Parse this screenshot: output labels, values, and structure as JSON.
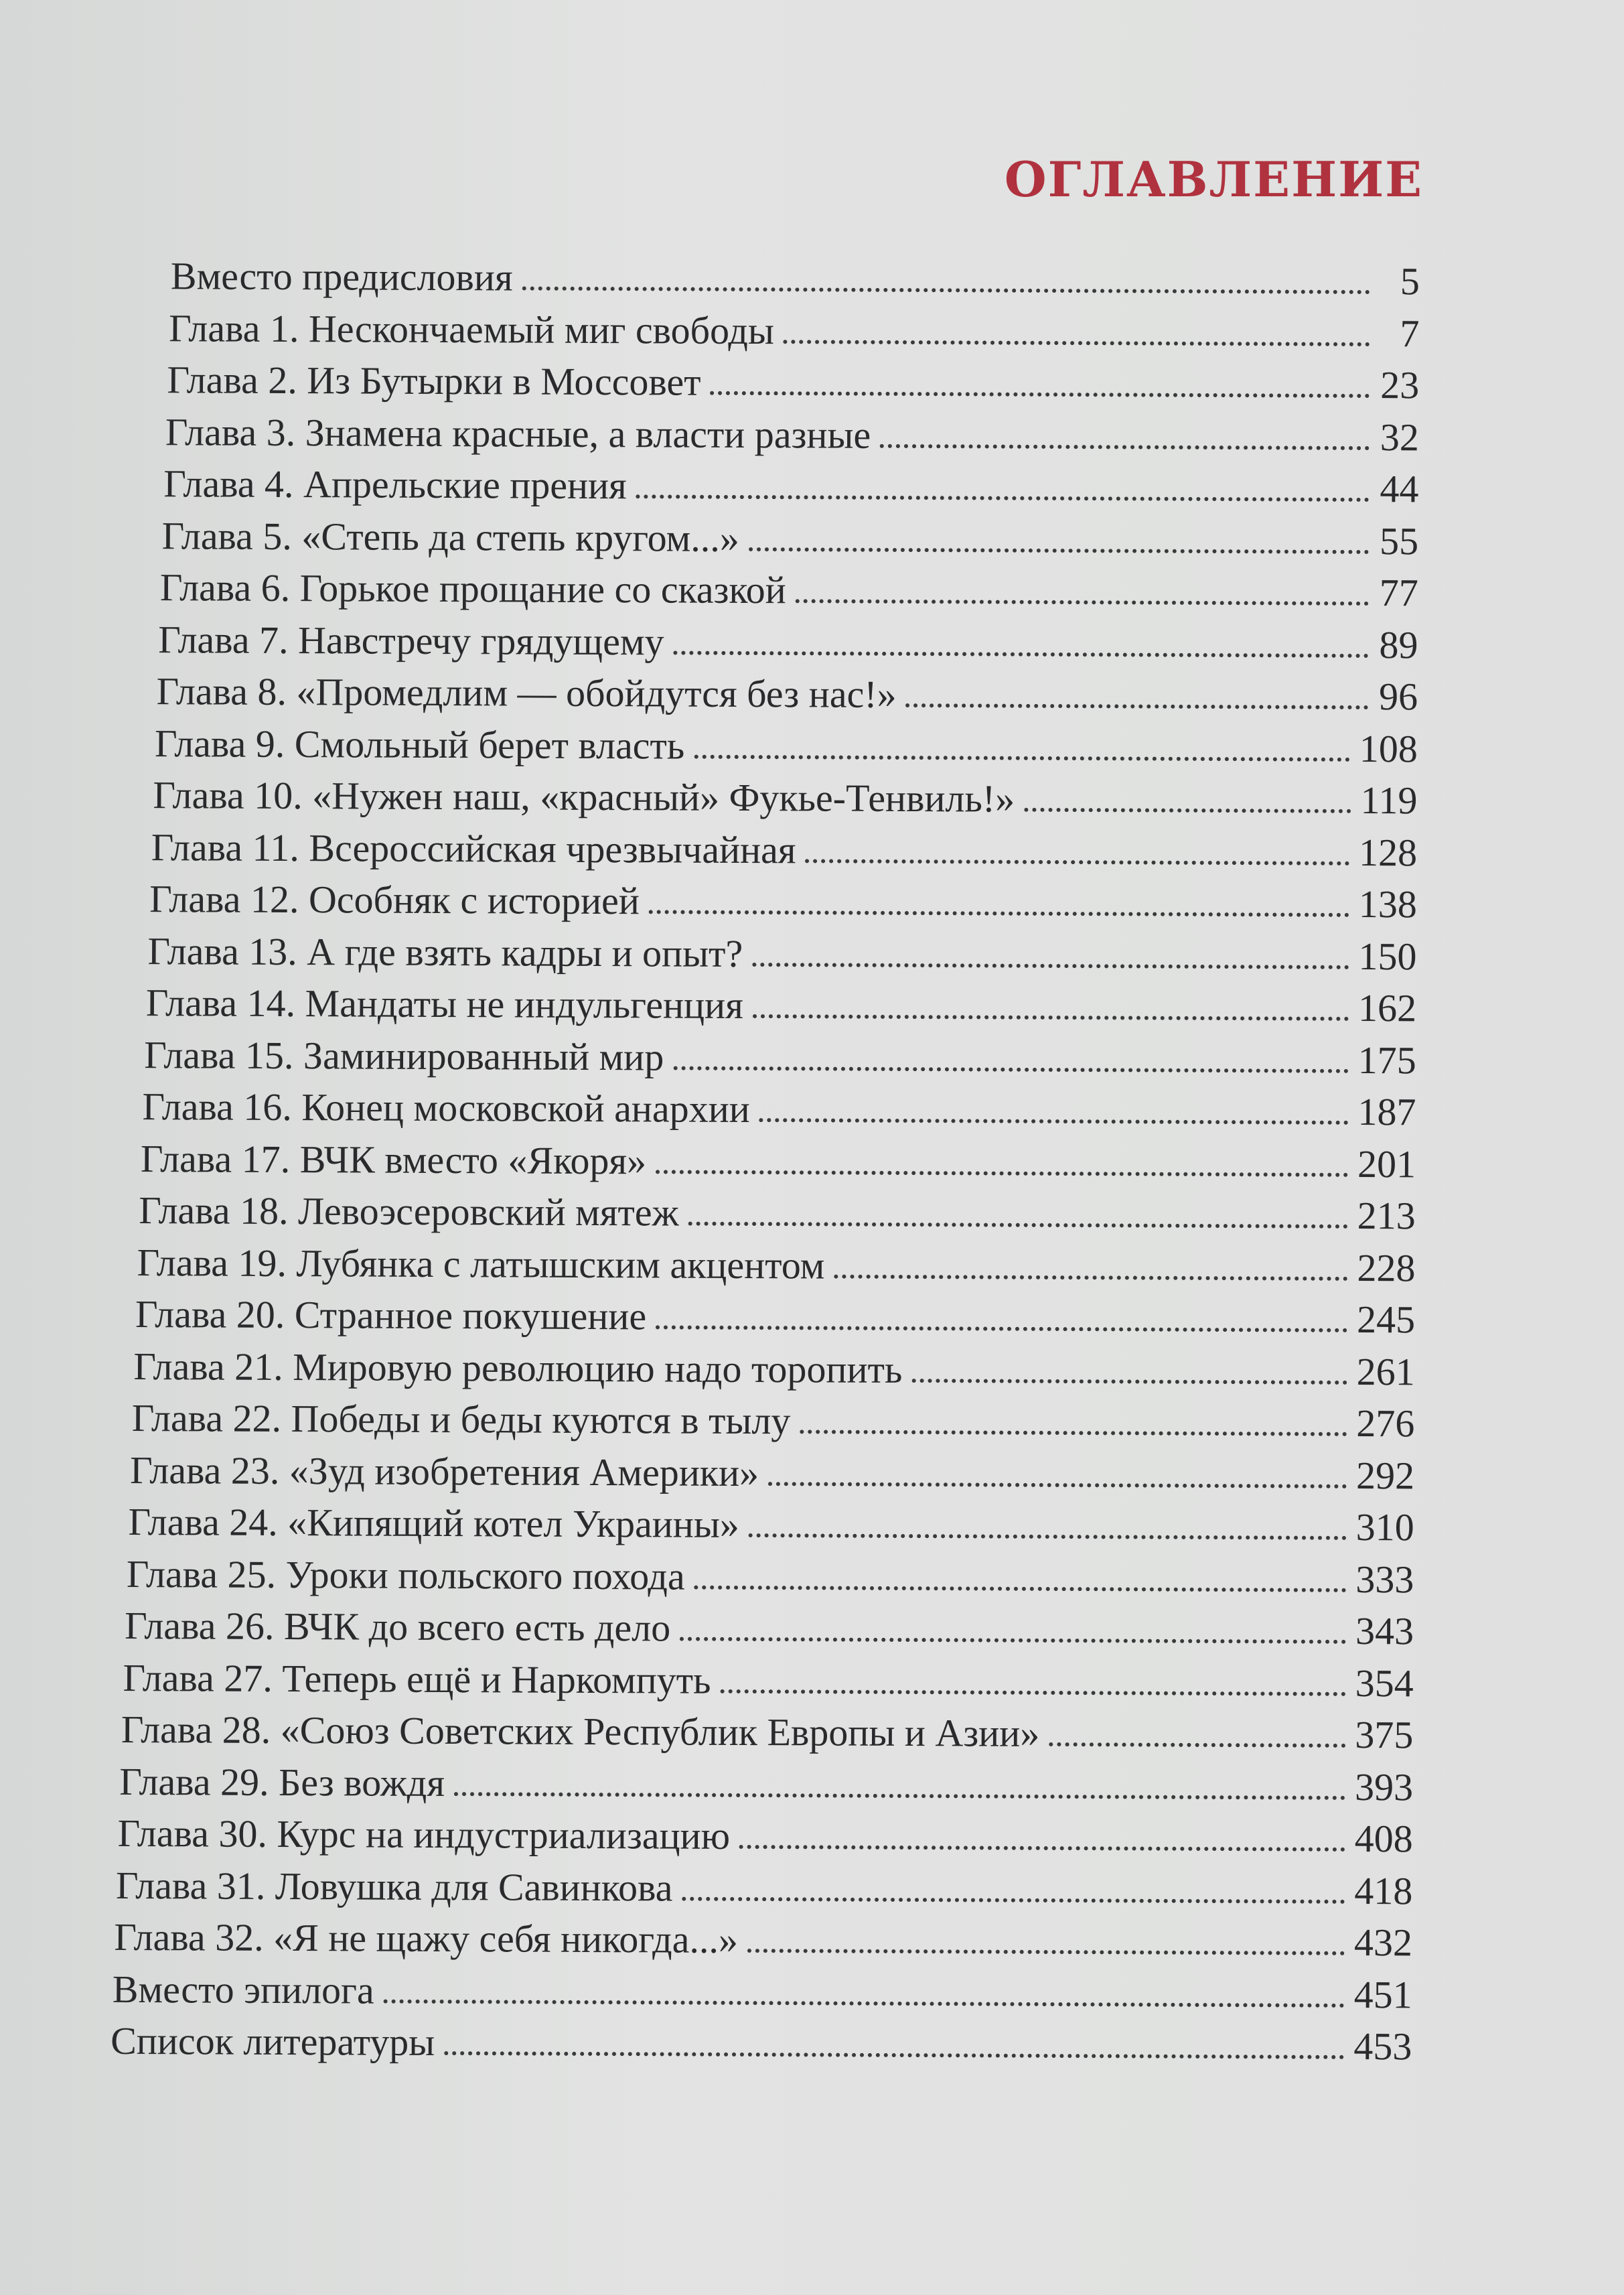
{
  "heading": "ОГЛАВЛЕНИЕ",
  "accent_color": "#b0323f",
  "entries": [
    {
      "title": "Вместо предисловия",
      "page": "5"
    },
    {
      "title": "Глава 1. Нескончаемый миг свободы",
      "page": "7"
    },
    {
      "title": "Глава 2. Из Бутырки в Моссовет",
      "page": "23"
    },
    {
      "title": "Глава 3. Знамена красные, а власти разные",
      "page": "32"
    },
    {
      "title": "Глава 4. Апрельские прения",
      "page": "44"
    },
    {
      "title": "Глава 5. «Степь да степь кругом...»",
      "page": "55"
    },
    {
      "title": "Глава 6. Горькое прощание со сказкой",
      "page": "77"
    },
    {
      "title": "Глава 7. Навстречу грядущему",
      "page": "89"
    },
    {
      "title": "Глава 8. «Промедлим — обойдутся без нас!»",
      "page": "96"
    },
    {
      "title": "Глава 9. Смольный берет власть",
      "page": "108"
    },
    {
      "title": "Глава 10. «Нужен наш, «красный» Фукье-Тенвиль!»",
      "page": "119"
    },
    {
      "title": "Глава 11. Всероссийская чрезвычайная",
      "page": "128"
    },
    {
      "title": "Глава 12. Особняк с историей",
      "page": "138"
    },
    {
      "title": "Глава 13. А где взять кадры и опыт?",
      "page": "150"
    },
    {
      "title": "Глава 14. Мандаты не индульгенция",
      "page": "162"
    },
    {
      "title": "Глава 15. Заминированный мир",
      "page": "175"
    },
    {
      "title": "Глава 16. Конец московской анархии",
      "page": "187"
    },
    {
      "title": "Глава 17. ВЧК вместо «Якоря»",
      "page": "201"
    },
    {
      "title": "Глава 18. Левоэсеровский мятеж",
      "page": "213"
    },
    {
      "title": "Глава 19. Лубянка с латышским акцентом",
      "page": "228"
    },
    {
      "title": "Глава 20. Странное покушение",
      "page": "245"
    },
    {
      "title": "Глава 21. Мировую революцию надо торопить",
      "page": "261"
    },
    {
      "title": "Глава 22. Победы и беды куются в тылу",
      "page": "276"
    },
    {
      "title": "Глава 23. «Зуд изобретения Америки»",
      "page": "292"
    },
    {
      "title": "Глава 24. «Кипящий котел Украины»",
      "page": "310"
    },
    {
      "title": "Глава 25. Уроки польского похода",
      "page": "333"
    },
    {
      "title": "Глава 26. ВЧК до всего есть дело",
      "page": "343"
    },
    {
      "title": "Глава 27. Теперь ещё и Наркомпуть",
      "page": "354"
    },
    {
      "title": "Глава 28. «Союз Советских Республик Европы и Азии»",
      "page": "375"
    },
    {
      "title": "Глава 29. Без вождя",
      "page": "393"
    },
    {
      "title": "Глава 30. Курс на индустриализацию",
      "page": "408"
    },
    {
      "title": "Глава 31. Ловушка для Савинкова",
      "page": "418"
    },
    {
      "title": "Глава 32. «Я не щажу себя никогда...»",
      "page": "432"
    },
    {
      "title": "Вместо эпилога",
      "page": "451"
    },
    {
      "title": "Список литературы",
      "page": "453"
    }
  ]
}
